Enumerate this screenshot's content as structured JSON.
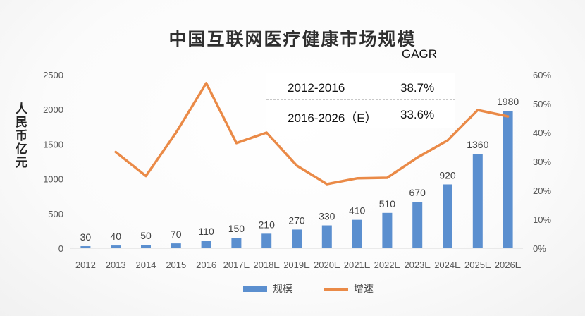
{
  "colors": {
    "bar": "#5b8fcf",
    "line": "#ea8a47",
    "axis": "#d9d9d9",
    "tick_text": "#595959",
    "label_text": "#404040"
  },
  "chart_data": {
    "type": "bar",
    "title": "中国互联网医疗健康市场规模",
    "ylabel": "人民币亿元",
    "categories": [
      "2012",
      "2013",
      "2014",
      "2015",
      "2016",
      "2017E",
      "2018E",
      "2019E",
      "2020E",
      "2021E",
      "2022E",
      "2023E",
      "2024E",
      "2025E",
      "2026E"
    ],
    "y_left": {
      "min": 0,
      "max": 2500,
      "ticks": [
        "0",
        "500",
        "1000",
        "1500",
        "2000",
        "2500"
      ]
    },
    "y_right": {
      "min": 0,
      "max": 60,
      "ticks": [
        "0%",
        "10%",
        "20%",
        "30%",
        "40%",
        "50%",
        "60%"
      ]
    },
    "series": [
      {
        "name": "规模",
        "type": "bar",
        "axis": "left",
        "values": [
          30,
          40,
          50,
          70,
          110,
          150,
          210,
          270,
          330,
          410,
          510,
          670,
          920,
          1360,
          1980
        ],
        "labels": [
          "30",
          "40",
          "50",
          "70",
          "110",
          "150",
          "210",
          "270",
          "330",
          "410",
          "510",
          "670",
          "920",
          "1360",
          "1980"
        ]
      },
      {
        "name": "增速",
        "type": "line",
        "axis": "right",
        "values": [
          null,
          33.3,
          25,
          40,
          57.1,
          36.4,
          40,
          28.6,
          22.2,
          24.2,
          24.4,
          31.4,
          37.3,
          47.8,
          45.6
        ]
      }
    ],
    "legend": {
      "position": "bottom"
    },
    "gagr": {
      "title": "GAGR",
      "rows": [
        {
          "period": "2012-2016",
          "rate": "38.7%"
        },
        {
          "period": "2016-2026（E）",
          "rate": "33.6%"
        }
      ]
    }
  }
}
